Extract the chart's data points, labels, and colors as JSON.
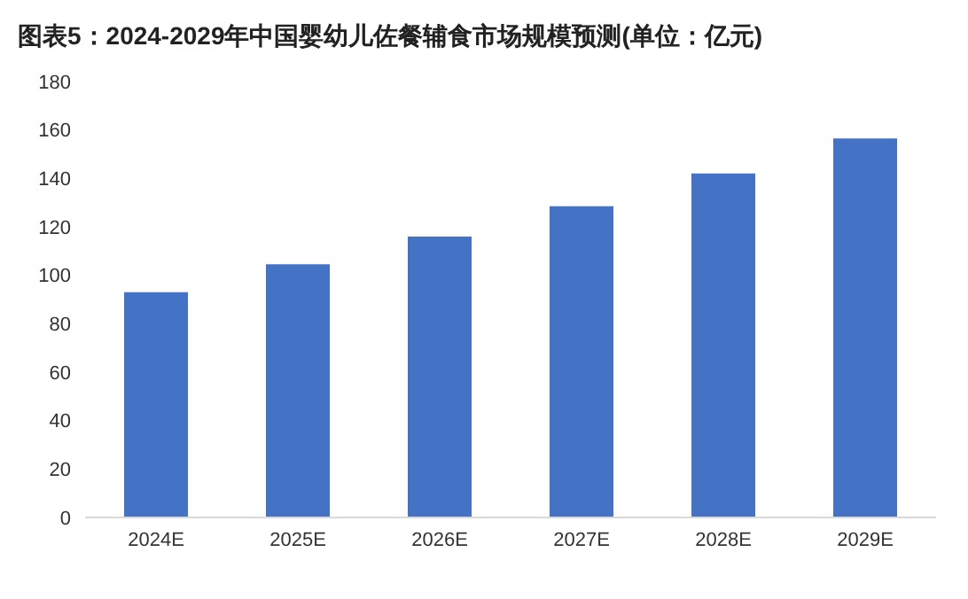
{
  "chart_data": {
    "type": "bar",
    "title": "图表5：2024-2029年中国婴幼儿佐餐辅食市场规模预测(单位：亿元)",
    "categories": [
      "2024E",
      "2025E",
      "2026E",
      "2027E",
      "2028E",
      "2029E"
    ],
    "values": [
      93,
      104.5,
      116,
      128.5,
      142,
      156.5
    ],
    "color": "#4472c4",
    "ylim": [
      0,
      180
    ],
    "yticks": [
      0,
      20,
      40,
      60,
      80,
      100,
      120,
      140,
      160,
      180
    ]
  }
}
